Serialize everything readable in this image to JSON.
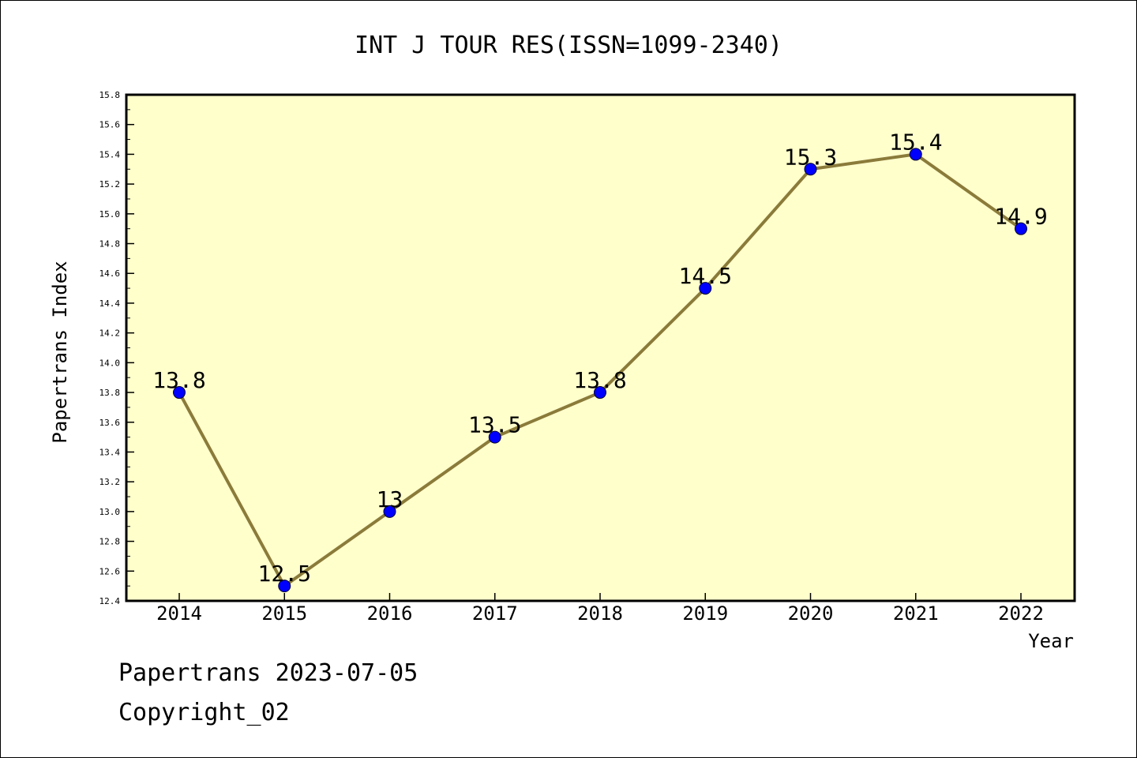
{
  "chart_data": {
    "type": "line",
    "title": "INT J TOUR RES(ISSN=1099-2340)",
    "xlabel": "Year",
    "ylabel": "Papertrans Index",
    "categories": [
      "2014",
      "2015",
      "2016",
      "2017",
      "2018",
      "2019",
      "2020",
      "2021",
      "2022"
    ],
    "values": [
      13.8,
      12.5,
      13,
      13.5,
      13.8,
      14.5,
      15.3,
      15.4,
      14.9
    ],
    "data_labels": [
      "13.8",
      "12.5",
      "13",
      "13.5",
      "13.8",
      "14.5",
      "15.3",
      "15.4",
      "14.9"
    ],
    "ylim": [
      12.4,
      15.8
    ],
    "yticks": [
      "12.4",
      "12.6",
      "12.8",
      "13.0",
      "13.2",
      "13.4",
      "13.6",
      "13.8",
      "14.0",
      "14.2",
      "14.4",
      "14.6",
      "14.8",
      "15.0",
      "15.2",
      "15.4",
      "15.6",
      "15.8"
    ],
    "grid": false,
    "legend": "none",
    "colors": {
      "plot_background": "#ffffcc",
      "line": "#8b7b3a",
      "marker": "#0000ff"
    }
  },
  "footer": {
    "source": "Papertrans 2023-07-05",
    "copyright": "Copyright_02"
  }
}
